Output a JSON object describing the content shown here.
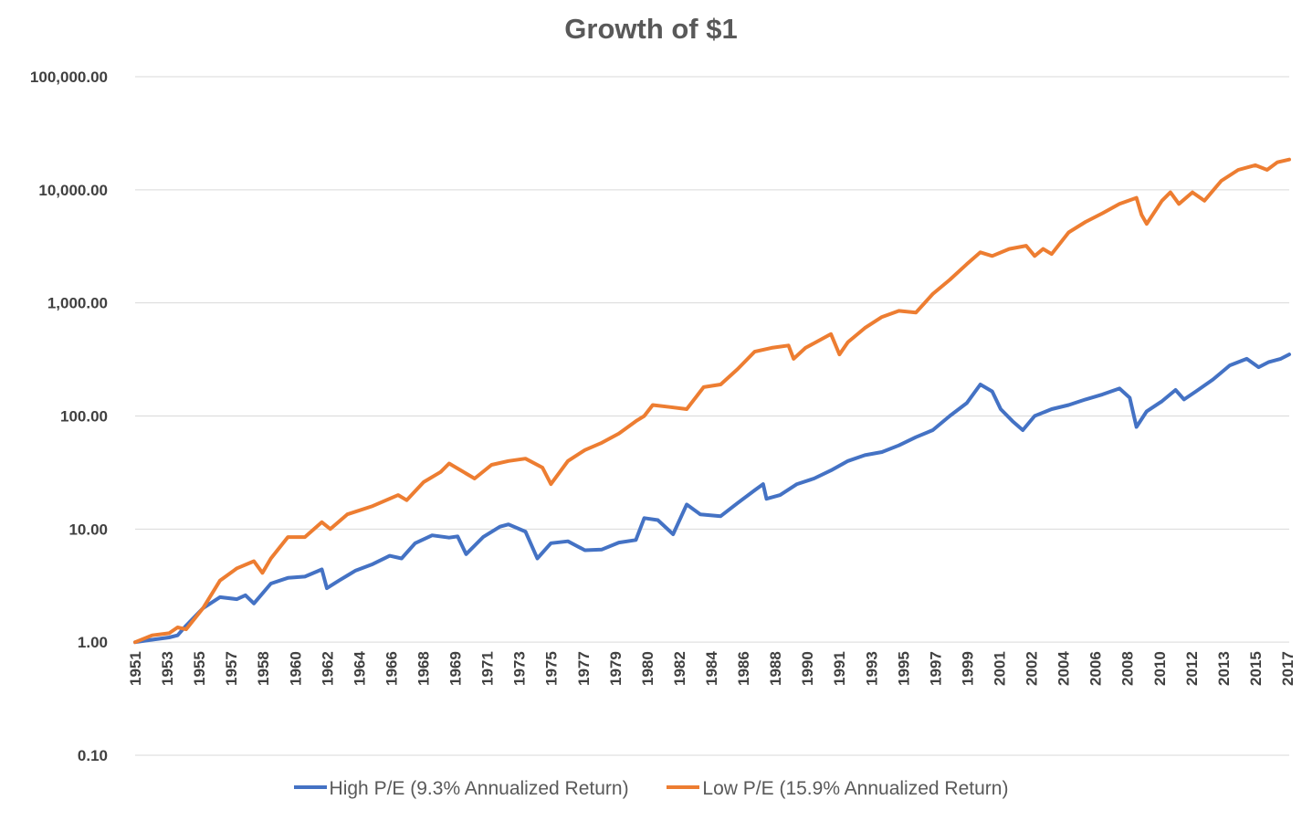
{
  "chart_data": {
    "type": "line",
    "title": "Growth of $1",
    "y_scale": "log",
    "ylim": [
      0.1,
      100000
    ],
    "y_ticks": [
      {
        "value": 100000,
        "label": "100,000.00"
      },
      {
        "value": 10000,
        "label": "10,000.00"
      },
      {
        "value": 1000,
        "label": "1,000.00"
      },
      {
        "value": 100,
        "label": "100.00"
      },
      {
        "value": 10,
        "label": "10.00"
      },
      {
        "value": 1,
        "label": "1.00"
      },
      {
        "value": 0.1,
        "label": "0.10"
      }
    ],
    "x_tick_labels": [
      "1951",
      "1953",
      "1955",
      "1957",
      "1958",
      "1960",
      "1962",
      "1964",
      "1966",
      "1968",
      "1969",
      "1971",
      "1973",
      "1975",
      "1977",
      "1979",
      "1980",
      "1982",
      "1984",
      "1986",
      "1988",
      "1990",
      "1991",
      "1993",
      "1995",
      "1997",
      "1999",
      "2001",
      "2002",
      "2004",
      "2006",
      "2008",
      "2010",
      "2012",
      "2013",
      "2015",
      "2017"
    ],
    "grid": "horizontal",
    "legend_position": "bottom",
    "x_range": [
      1951,
      2017
    ],
    "series": [
      {
        "name": "High P/E (9.3% Annualized Return)",
        "color": "#4472C4",
        "points": [
          [
            1951.0,
            1.0
          ],
          [
            1952.0,
            1.05
          ],
          [
            1953.0,
            1.1
          ],
          [
            1953.5,
            1.15
          ],
          [
            1954.0,
            1.4
          ],
          [
            1955.0,
            2.0
          ],
          [
            1956.0,
            2.5
          ],
          [
            1957.0,
            2.4
          ],
          [
            1957.5,
            2.6
          ],
          [
            1958.0,
            2.2
          ],
          [
            1959.0,
            3.3
          ],
          [
            1960.0,
            3.7
          ],
          [
            1961.0,
            3.8
          ],
          [
            1962.0,
            4.4
          ],
          [
            1962.3,
            3.0
          ],
          [
            1963.0,
            3.5
          ],
          [
            1964.0,
            4.3
          ],
          [
            1965.0,
            4.9
          ],
          [
            1966.0,
            5.8
          ],
          [
            1966.7,
            5.5
          ],
          [
            1967.5,
            7.5
          ],
          [
            1968.5,
            8.8
          ],
          [
            1969.5,
            8.4
          ],
          [
            1970.0,
            8.6
          ],
          [
            1970.5,
            6.0
          ],
          [
            1971.5,
            8.5
          ],
          [
            1972.5,
            10.5
          ],
          [
            1973.0,
            11.0
          ],
          [
            1974.0,
            9.5
          ],
          [
            1974.7,
            5.5
          ],
          [
            1975.5,
            7.5
          ],
          [
            1976.5,
            7.8
          ],
          [
            1977.5,
            6.5
          ],
          [
            1978.5,
            6.6
          ],
          [
            1979.5,
            7.6
          ],
          [
            1980.5,
            8.0
          ],
          [
            1981.0,
            12.5
          ],
          [
            1981.8,
            12.0
          ],
          [
            1982.7,
            9.0
          ],
          [
            1983.5,
            16.5
          ],
          [
            1984.3,
            13.5
          ],
          [
            1985.5,
            13.0
          ],
          [
            1986.5,
            17.0
          ],
          [
            1987.5,
            22.0
          ],
          [
            1988.0,
            25.0
          ],
          [
            1988.2,
            18.5
          ],
          [
            1989.0,
            20.0
          ],
          [
            1990.0,
            25.0
          ],
          [
            1991.0,
            28.0
          ],
          [
            1992.0,
            33.0
          ],
          [
            1993.0,
            40.0
          ],
          [
            1994.0,
            45.0
          ],
          [
            1995.0,
            48.0
          ],
          [
            1996.0,
            55.0
          ],
          [
            1997.0,
            65.0
          ],
          [
            1998.0,
            75.0
          ],
          [
            1999.0,
            100.0
          ],
          [
            2000.0,
            130.0
          ],
          [
            2000.8,
            190.0
          ],
          [
            2001.5,
            165.0
          ],
          [
            2002.0,
            115.0
          ],
          [
            2002.7,
            90.0
          ],
          [
            2003.3,
            75.0
          ],
          [
            2004.0,
            100.0
          ],
          [
            2005.0,
            115.0
          ],
          [
            2006.0,
            125.0
          ],
          [
            2007.0,
            140.0
          ],
          [
            2008.0,
            155.0
          ],
          [
            2009.0,
            175.0
          ],
          [
            2009.6,
            145.0
          ],
          [
            2010.0,
            80.0
          ],
          [
            2010.6,
            110.0
          ],
          [
            2011.5,
            135.0
          ],
          [
            2012.3,
            170.0
          ],
          [
            2012.8,
            140.0
          ],
          [
            2013.5,
            165.0
          ],
          [
            2014.5,
            210.0
          ],
          [
            2015.5,
            280.0
          ],
          [
            2016.5,
            320.0
          ],
          [
            2017.2,
            270.0
          ],
          [
            2017.8,
            300.0
          ],
          [
            2018.5,
            320.0
          ],
          [
            2019.0,
            350.0
          ]
        ]
      },
      {
        "name": "Low P/E (15.9% Annualized Return)",
        "color": "#ED7D31",
        "points": [
          [
            1951.0,
            1.0
          ],
          [
            1952.0,
            1.15
          ],
          [
            1953.0,
            1.2
          ],
          [
            1953.5,
            1.35
          ],
          [
            1954.0,
            1.3
          ],
          [
            1955.0,
            2.0
          ],
          [
            1956.0,
            3.5
          ],
          [
            1957.0,
            4.5
          ],
          [
            1958.0,
            5.2
          ],
          [
            1958.5,
            4.1
          ],
          [
            1959.0,
            5.5
          ],
          [
            1960.0,
            8.5
          ],
          [
            1961.0,
            8.5
          ],
          [
            1962.0,
            11.5
          ],
          [
            1962.5,
            10.0
          ],
          [
            1963.5,
            13.5
          ],
          [
            1965.0,
            16.0
          ],
          [
            1966.5,
            20.0
          ],
          [
            1967.0,
            18.0
          ],
          [
            1968.0,
            26.0
          ],
          [
            1969.0,
            32.0
          ],
          [
            1969.5,
            38.0
          ],
          [
            1970.5,
            31.0
          ],
          [
            1971.0,
            28.0
          ],
          [
            1972.0,
            37.0
          ],
          [
            1973.0,
            40.0
          ],
          [
            1974.0,
            42.0
          ],
          [
            1975.0,
            35.0
          ],
          [
            1975.5,
            25.0
          ],
          [
            1976.5,
            40.0
          ],
          [
            1977.5,
            50.0
          ],
          [
            1978.5,
            58.0
          ],
          [
            1979.5,
            70.0
          ],
          [
            1980.5,
            90.0
          ],
          [
            1981.0,
            100.0
          ],
          [
            1981.5,
            125.0
          ],
          [
            1982.5,
            120.0
          ],
          [
            1983.5,
            115.0
          ],
          [
            1984.5,
            180.0
          ],
          [
            1985.5,
            190.0
          ],
          [
            1986.5,
            260.0
          ],
          [
            1987.5,
            370.0
          ],
          [
            1988.5,
            400.0
          ],
          [
            1989.5,
            420.0
          ],
          [
            1989.8,
            320.0
          ],
          [
            1990.5,
            400.0
          ],
          [
            1992.0,
            530.0
          ],
          [
            1992.5,
            350.0
          ],
          [
            1993.0,
            450.0
          ],
          [
            1994.0,
            600.0
          ],
          [
            1995.0,
            750.0
          ],
          [
            1996.0,
            850.0
          ],
          [
            1997.0,
            820.0
          ],
          [
            1998.0,
            1200.0
          ],
          [
            1999.0,
            1600.0
          ],
          [
            2000.0,
            2200.0
          ],
          [
            2000.8,
            2800.0
          ],
          [
            2001.5,
            2600.0
          ],
          [
            2002.5,
            3000.0
          ],
          [
            2003.5,
            3200.0
          ],
          [
            2004.0,
            2600.0
          ],
          [
            2004.5,
            3000.0
          ],
          [
            2005.0,
            2700.0
          ],
          [
            2006.0,
            4200.0
          ],
          [
            2007.0,
            5200.0
          ],
          [
            2008.0,
            6200.0
          ],
          [
            2009.0,
            7500.0
          ],
          [
            2010.0,
            8500.0
          ],
          [
            2010.3,
            6000.0
          ],
          [
            2010.6,
            5000.0
          ],
          [
            2011.5,
            8000.0
          ],
          [
            2012.0,
            9500.0
          ],
          [
            2012.5,
            7500.0
          ],
          [
            2013.3,
            9500.0
          ],
          [
            2014.0,
            8000.0
          ],
          [
            2015.0,
            12000.0
          ],
          [
            2016.0,
            15000.0
          ],
          [
            2017.0,
            16500.0
          ],
          [
            2017.7,
            15000.0
          ],
          [
            2018.3,
            17500.0
          ],
          [
            2019.0,
            18500.0
          ]
        ]
      }
    ]
  }
}
